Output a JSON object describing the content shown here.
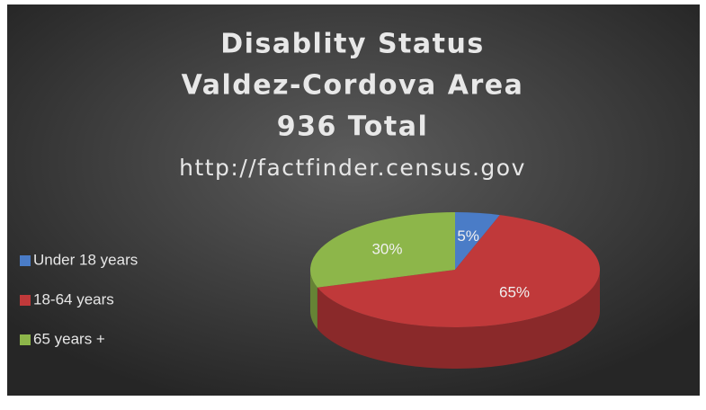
{
  "chart_data": {
    "type": "pie",
    "title": [
      "Disablity Status",
      "Valdez-Cordova Area",
      "936 Total"
    ],
    "subtitle": "http://factfinder.census.gov",
    "categories": [
      "Under 18 years",
      "18-64 years",
      "65 years +"
    ],
    "values": [
      5,
      65,
      30
    ],
    "value_labels": [
      "5%",
      "65%",
      "30%"
    ],
    "colors": [
      "#4a7cc7",
      "#c0393a",
      "#8db64a"
    ],
    "legend": "left"
  }
}
